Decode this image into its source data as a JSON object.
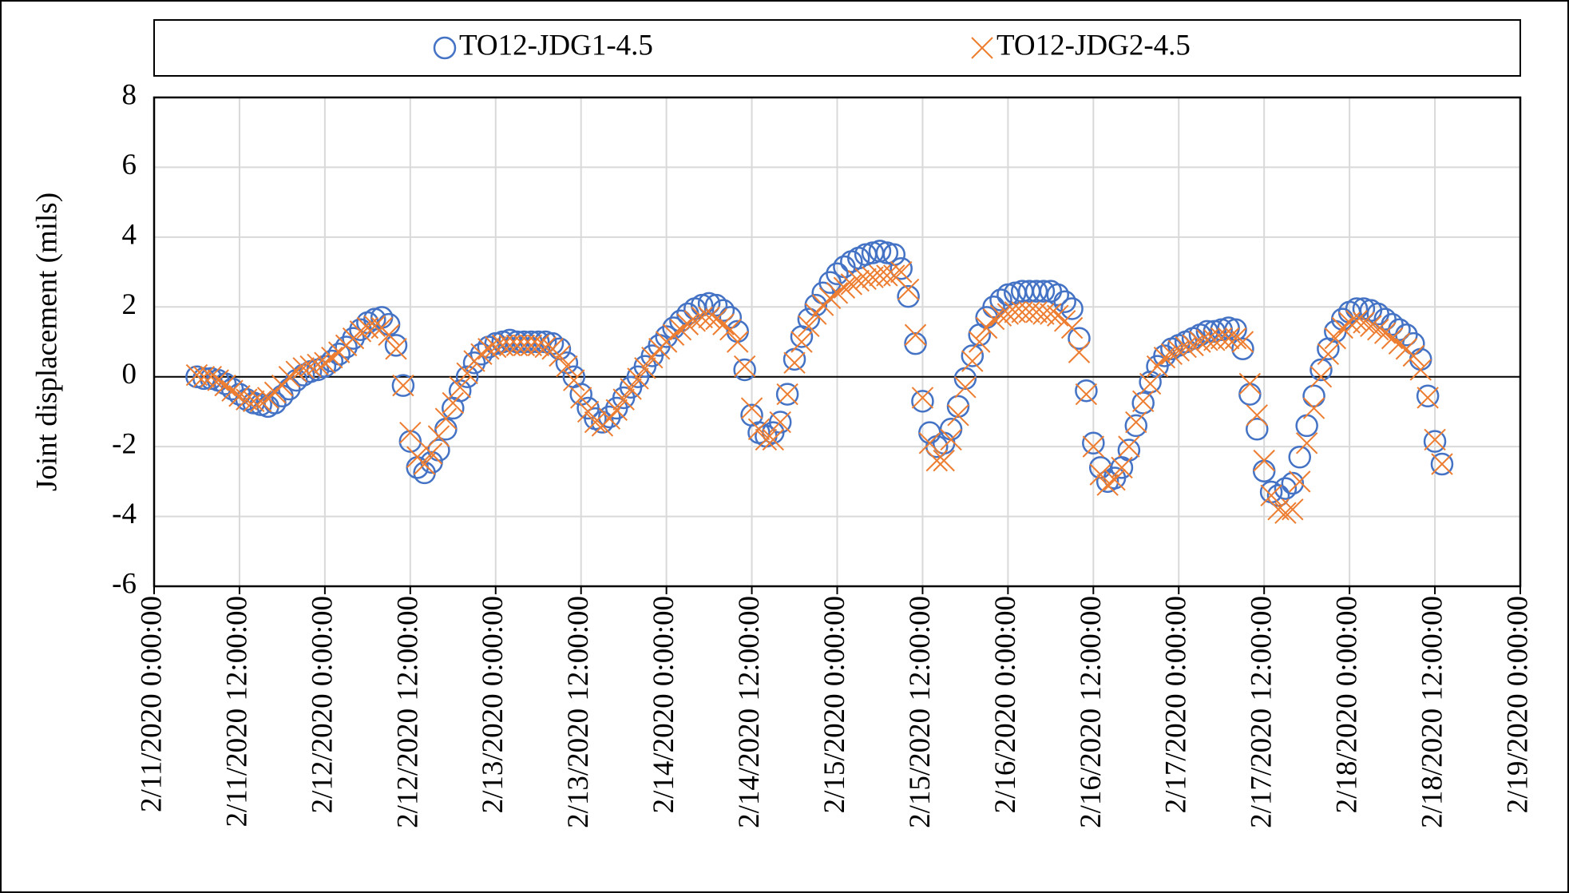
{
  "chart_data": {
    "type": "scatter",
    "y_label": "Joint displacement (mils)",
    "xlim": [
      "2/11/2020 0:00:00",
      "2/19/2020 0:00:00"
    ],
    "xticks": [
      "2/11/2020 0:00:00",
      "2/11/2020 12:00:00",
      "2/12/2020 0:00:00",
      "2/12/2020 12:00:00",
      "2/13/2020 0:00:00",
      "2/13/2020 12:00:00",
      "2/14/2020 0:00:00",
      "2/14/2020 12:00:00",
      "2/15/2020 0:00:00",
      "2/15/2020 12:00:00",
      "2/16/2020 0:00:00",
      "2/16/2020 12:00:00",
      "2/17/2020 0:00:00",
      "2/17/2020 12:00:00",
      "2/18/2020 0:00:00",
      "2/18/2020 12:00:00",
      "2/19/2020 0:00:00"
    ],
    "ylim": [
      -6,
      8
    ],
    "yticks": [
      -6,
      -4,
      -2,
      0,
      2,
      4,
      6,
      8
    ],
    "grid": true,
    "legend": "top",
    "x": [
      "2/11/2020 6:00:00",
      "2/11/2020 7:00:00",
      "2/11/2020 8:00:00",
      "2/11/2020 9:00:00",
      "2/11/2020 10:00:00",
      "2/11/2020 11:00:00",
      "2/11/2020 12:00:00",
      "2/11/2020 13:00:00",
      "2/11/2020 14:00:00",
      "2/11/2020 15:00:00",
      "2/11/2020 16:00:00",
      "2/11/2020 17:00:00",
      "2/11/2020 18:00:00",
      "2/11/2020 19:00:00",
      "2/11/2020 20:00:00",
      "2/11/2020 21:00:00",
      "2/11/2020 22:00:00",
      "2/11/2020 23:00:00",
      "2/12/2020 0:00:00",
      "2/12/2020 1:00:00",
      "2/12/2020 2:00:00",
      "2/12/2020 3:00:00",
      "2/12/2020 4:00:00",
      "2/12/2020 5:00:00",
      "2/12/2020 6:00:00",
      "2/12/2020 7:00:00",
      "2/12/2020 8:00:00",
      "2/12/2020 9:00:00",
      "2/12/2020 10:00:00",
      "2/12/2020 11:00:00",
      "2/12/2020 12:00:00",
      "2/12/2020 13:00:00",
      "2/12/2020 14:00:00",
      "2/12/2020 15:00:00",
      "2/12/2020 16:00:00",
      "2/12/2020 17:00:00",
      "2/12/2020 18:00:00",
      "2/12/2020 19:00:00",
      "2/12/2020 20:00:00",
      "2/12/2020 21:00:00",
      "2/12/2020 22:00:00",
      "2/12/2020 23:00:00",
      "2/13/2020 0:00:00",
      "2/13/2020 1:00:00",
      "2/13/2020 2:00:00",
      "2/13/2020 3:00:00",
      "2/13/2020 4:00:00",
      "2/13/2020 5:00:00",
      "2/13/2020 6:00:00",
      "2/13/2020 7:00:00",
      "2/13/2020 8:00:00",
      "2/13/2020 9:00:00",
      "2/13/2020 10:00:00",
      "2/13/2020 11:00:00",
      "2/13/2020 12:00:00",
      "2/13/2020 13:00:00",
      "2/13/2020 14:00:00",
      "2/13/2020 15:00:00",
      "2/13/2020 16:00:00",
      "2/13/2020 17:00:00",
      "2/13/2020 18:00:00",
      "2/13/2020 19:00:00",
      "2/13/2020 20:00:00",
      "2/13/2020 21:00:00",
      "2/13/2020 22:00:00",
      "2/13/2020 23:00:00",
      "2/14/2020 0:00:00",
      "2/14/2020 1:00:00",
      "2/14/2020 2:00:00",
      "2/14/2020 3:00:00",
      "2/14/2020 4:00:00",
      "2/14/2020 5:00:00",
      "2/14/2020 6:00:00",
      "2/14/2020 7:00:00",
      "2/14/2020 8:00:00",
      "2/14/2020 9:00:00",
      "2/14/2020 10:00:00",
      "2/14/2020 11:00:00",
      "2/14/2020 12:00:00",
      "2/14/2020 13:00:00",
      "2/14/2020 14:00:00",
      "2/14/2020 15:00:00",
      "2/14/2020 16:00:00",
      "2/14/2020 17:00:00",
      "2/14/2020 18:00:00",
      "2/14/2020 19:00:00",
      "2/14/2020 20:00:00",
      "2/14/2020 21:00:00",
      "2/14/2020 22:00:00",
      "2/14/2020 23:00:00",
      "2/15/2020 0:00:00",
      "2/15/2020 1:00:00",
      "2/15/2020 2:00:00",
      "2/15/2020 3:00:00",
      "2/15/2020 4:00:00",
      "2/15/2020 5:00:00",
      "2/15/2020 6:00:00",
      "2/15/2020 7:00:00",
      "2/15/2020 8:00:00",
      "2/15/2020 9:00:00",
      "2/15/2020 10:00:00",
      "2/15/2020 11:00:00",
      "2/15/2020 12:00:00",
      "2/15/2020 13:00:00",
      "2/15/2020 14:00:00",
      "2/15/2020 15:00:00",
      "2/15/2020 16:00:00",
      "2/15/2020 17:00:00",
      "2/15/2020 18:00:00",
      "2/15/2020 19:00:00",
      "2/15/2020 20:00:00",
      "2/15/2020 21:00:00",
      "2/15/2020 22:00:00",
      "2/15/2020 23:00:00",
      "2/16/2020 0:00:00",
      "2/16/2020 1:00:00",
      "2/16/2020 2:00:00",
      "2/16/2020 3:00:00",
      "2/16/2020 4:00:00",
      "2/16/2020 5:00:00",
      "2/16/2020 6:00:00",
      "2/16/2020 7:00:00",
      "2/16/2020 8:00:00",
      "2/16/2020 9:00:00",
      "2/16/2020 10:00:00",
      "2/16/2020 11:00:00",
      "2/16/2020 12:00:00",
      "2/16/2020 13:00:00",
      "2/16/2020 14:00:00",
      "2/16/2020 15:00:00",
      "2/16/2020 16:00:00",
      "2/16/2020 17:00:00",
      "2/16/2020 18:00:00",
      "2/16/2020 19:00:00",
      "2/16/2020 20:00:00",
      "2/16/2020 21:00:00",
      "2/16/2020 22:00:00",
      "2/16/2020 23:00:00",
      "2/17/2020 0:00:00",
      "2/17/2020 1:00:00",
      "2/17/2020 2:00:00",
      "2/17/2020 3:00:00",
      "2/17/2020 4:00:00",
      "2/17/2020 5:00:00",
      "2/17/2020 6:00:00",
      "2/17/2020 7:00:00",
      "2/17/2020 8:00:00",
      "2/17/2020 9:00:00",
      "2/17/2020 10:00:00",
      "2/17/2020 11:00:00",
      "2/17/2020 12:00:00",
      "2/17/2020 13:00:00",
      "2/17/2020 14:00:00",
      "2/17/2020 15:00:00",
      "2/17/2020 16:00:00",
      "2/17/2020 17:00:00",
      "2/17/2020 18:00:00",
      "2/17/2020 19:00:00",
      "2/17/2020 20:00:00",
      "2/17/2020 21:00:00",
      "2/17/2020 22:00:00",
      "2/17/2020 23:00:00",
      "2/18/2020 0:00:00",
      "2/18/2020 1:00:00",
      "2/18/2020 2:00:00",
      "2/18/2020 3:00:00",
      "2/18/2020 4:00:00",
      "2/18/2020 5:00:00",
      "2/18/2020 6:00:00",
      "2/18/2020 7:00:00",
      "2/18/2020 8:00:00",
      "2/18/2020 9:00:00",
      "2/18/2020 10:00:00",
      "2/18/2020 11:00:00",
      "2/18/2020 12:00:00",
      "2/18/2020 13:00:00"
    ],
    "series": [
      {
        "name": "TO12-JDG1-4.5",
        "color": "#4472c4",
        "marker": "circle",
        "values": [
          0,
          -0.05,
          -0.05,
          -0.1,
          -0.2,
          -0.35,
          -0.5,
          -0.65,
          -0.75,
          -0.8,
          -0.85,
          -0.75,
          -0.55,
          -0.35,
          -0.1,
          0.05,
          0.15,
          0.2,
          0.3,
          0.45,
          0.65,
          0.85,
          1.1,
          1.35,
          1.55,
          1.65,
          1.7,
          1.5,
          0.9,
          -0.25,
          -1.85,
          -2.6,
          -2.75,
          -2.45,
          -2.1,
          -1.5,
          -0.9,
          -0.4,
          0,
          0.4,
          0.65,
          0.85,
          0.95,
          1,
          1.05,
          1,
          1,
          1,
          1,
          1,
          0.95,
          0.8,
          0.4,
          0,
          -0.5,
          -0.9,
          -1.2,
          -1.3,
          -1.15,
          -0.9,
          -0.6,
          -0.3,
          0,
          0.3,
          0.6,
          0.9,
          1.15,
          1.4,
          1.6,
          1.8,
          1.95,
          2.05,
          2.1,
          2.05,
          1.9,
          1.7,
          1.3,
          0.2,
          -1.1,
          -1.6,
          -1.7,
          -1.6,
          -1.3,
          -0.5,
          0.5,
          1.15,
          1.65,
          2.05,
          2.4,
          2.7,
          2.95,
          3.15,
          3.3,
          3.4,
          3.5,
          3.55,
          3.6,
          3.55,
          3.5,
          3.1,
          2.3,
          0.95,
          -0.7,
          -1.6,
          -2,
          -1.9,
          -1.5,
          -0.85,
          -0.05,
          0.6,
          1.2,
          1.7,
          2,
          2.2,
          2.35,
          2.4,
          2.45,
          2.45,
          2.45,
          2.45,
          2.45,
          2.35,
          2.15,
          1.95,
          1.1,
          -0.4,
          -1.9,
          -2.6,
          -3,
          -2.9,
          -2.6,
          -2.1,
          -1.4,
          -0.75,
          -0.15,
          0.3,
          0.6,
          0.8,
          0.9,
          1,
          1.1,
          1.2,
          1.3,
          1.3,
          1.35,
          1.4,
          1.35,
          0.8,
          -0.5,
          -1.5,
          -2.7,
          -3.3,
          -3.4,
          -3.2,
          -3.05,
          -2.3,
          -1.4,
          -0.55,
          0.2,
          0.8,
          1.3,
          1.65,
          1.85,
          1.95,
          1.95,
          1.9,
          1.8,
          1.65,
          1.5,
          1.35,
          1.2,
          0.95,
          0.5,
          -0.55,
          -1.85,
          -2.5
        ]
      },
      {
        "name": "TO12-JDG2-4.5",
        "color": "#ed7d31",
        "marker": "x",
        "values": [
          0.05,
          0,
          0,
          -0.1,
          -0.25,
          -0.4,
          -0.55,
          -0.65,
          -0.7,
          -0.7,
          -0.6,
          -0.45,
          -0.25,
          0,
          0.15,
          0.25,
          0.3,
          0.35,
          0.4,
          0.55,
          0.7,
          0.9,
          1.1,
          1.3,
          1.4,
          1.45,
          1.4,
          1.2,
          0.8,
          -0.25,
          -1.6,
          -2.3,
          -2.5,
          -2.2,
          -1.7,
          -1.2,
          -0.75,
          -0.3,
          0.1,
          0.45,
          0.65,
          0.8,
          0.85,
          0.9,
          0.9,
          0.9,
          0.9,
          0.9,
          0.9,
          0.85,
          0.8,
          0.6,
          0.3,
          -0.1,
          -0.6,
          -1,
          -1.3,
          -1.4,
          -1.2,
          -0.95,
          -0.65,
          -0.35,
          -0.05,
          0.25,
          0.55,
          0.8,
          1,
          1.2,
          1.35,
          1.5,
          1.6,
          1.7,
          1.7,
          1.65,
          1.5,
          1.35,
          1,
          0.3,
          -0.9,
          -1.5,
          -1.8,
          -1.8,
          -1.3,
          -0.5,
          0.4,
          1,
          1.45,
          1.8,
          2.05,
          2.25,
          2.4,
          2.55,
          2.65,
          2.75,
          2.8,
          2.85,
          2.9,
          2.9,
          2.9,
          3,
          2.5,
          1.2,
          -0.6,
          -1.9,
          -2.4,
          -2.4,
          -1.8,
          -1.1,
          -0.3,
          0.45,
          1,
          1.4,
          1.65,
          1.75,
          1.8,
          1.85,
          1.85,
          1.85,
          1.85,
          1.8,
          1.8,
          1.75,
          1.6,
          1.4,
          0.7,
          -0.5,
          -2,
          -2.8,
          -3.1,
          -2.95,
          -2.6,
          -2,
          -1.3,
          -0.7,
          -0.2,
          0.3,
          0.55,
          0.65,
          0.75,
          0.85,
          0.9,
          1,
          1.05,
          1.05,
          1.1,
          1.1,
          1.1,
          1,
          -0.2,
          -1.1,
          -2.4,
          -3.4,
          -3.8,
          -3.9,
          -3.8,
          -3,
          -1.9,
          -0.9,
          0,
          0.65,
          1.1,
          1.4,
          1.55,
          1.6,
          1.55,
          1.45,
          1.35,
          1.25,
          1.1,
          0.95,
          0.8,
          0.6,
          0.2,
          -0.6,
          -1.8,
          -2.5
        ]
      }
    ]
  }
}
